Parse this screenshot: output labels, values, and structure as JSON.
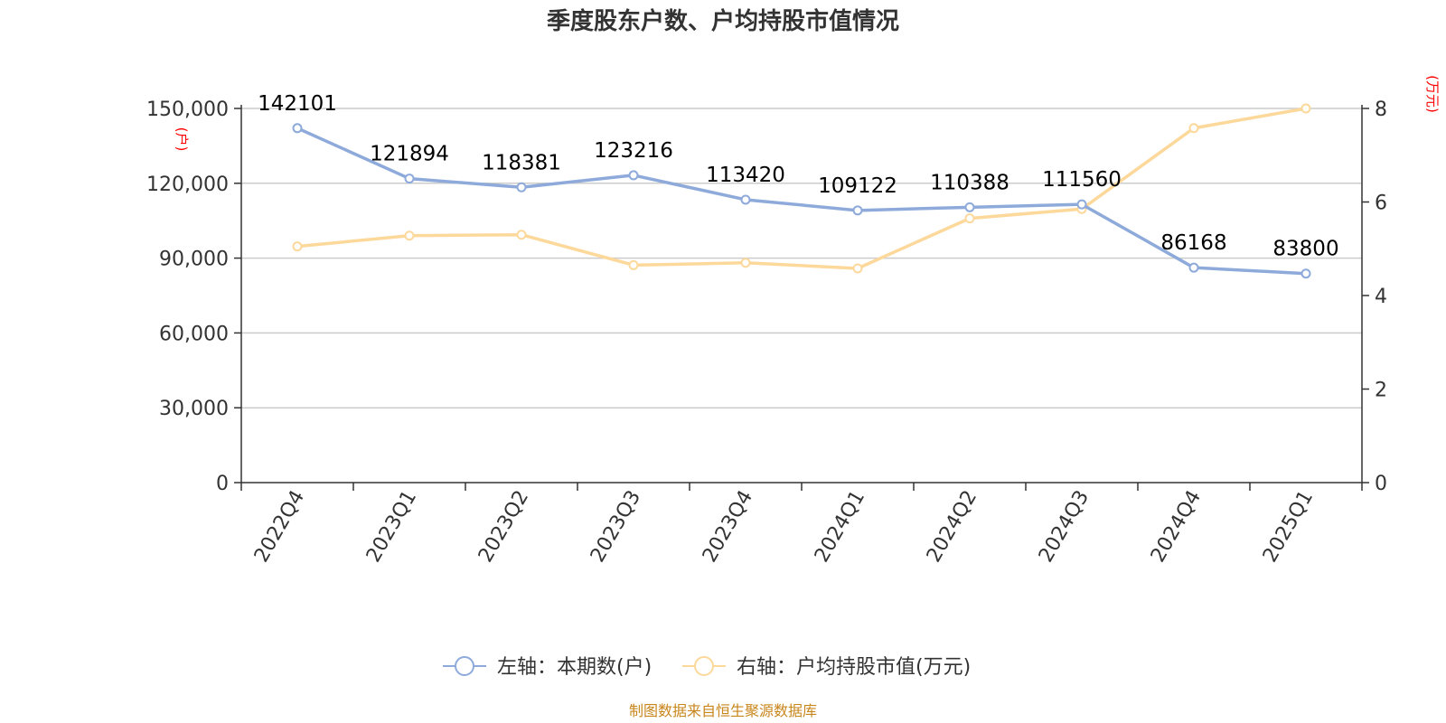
{
  "chart_data": {
    "type": "line",
    "title": "季度股东户数、户均持股市值情况",
    "categories": [
      "2022Q4",
      "2023Q1",
      "2023Q2",
      "2023Q3",
      "2023Q4",
      "2024Q1",
      "2024Q2",
      "2024Q3",
      "2024Q4",
      "2025Q1"
    ],
    "series": [
      {
        "name": "左轴：本期数(户)",
        "axis": "left",
        "color": "#8eaadb",
        "values": [
          142101,
          121894,
          118381,
          123216,
          113420,
          109122,
          110388,
          111560,
          86168,
          83800
        ],
        "labels": [
          "142101",
          "121894",
          "118381",
          "123216",
          "113420",
          "109122",
          "110388",
          "111560",
          "86168",
          "83800"
        ]
      },
      {
        "name": "右轴：户均持股市值(万元)",
        "axis": "right",
        "color": "#fdd89b",
        "values": [
          5.05,
          5.28,
          5.3,
          4.65,
          4.7,
          4.58,
          5.65,
          5.85,
          7.58,
          8.0
        ]
      }
    ],
    "left_axis": {
      "unit": "(户)",
      "ylim": [
        0,
        150000
      ],
      "ticks": [
        0,
        30000,
        60000,
        90000,
        120000,
        150000
      ],
      "tick_labels": [
        "0",
        "30,000",
        "60,000",
        "90,000",
        "120,000",
        "150,000"
      ]
    },
    "right_axis": {
      "unit": "(万元)",
      "ylim": [
        0,
        8
      ],
      "ticks": [
        0,
        2,
        4,
        6,
        8
      ],
      "tick_labels": [
        "0",
        "2",
        "4",
        "6",
        "8"
      ]
    },
    "grid": true,
    "legend_position": "bottom-center",
    "source": "制图数据来自恒生聚源数据库"
  }
}
